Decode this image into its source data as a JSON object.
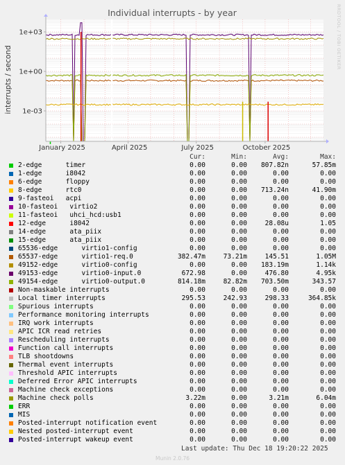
{
  "chart_data": {
    "type": "line",
    "title": "Individual interrupts - by year",
    "ylabel": "interrupts / second",
    "xlabel": "",
    "y_scale": "log",
    "y_ticks": [
      {
        "value": 1000,
        "label": "1e+03"
      },
      {
        "value": 1,
        "label": "1e+00"
      },
      {
        "value": 0.001,
        "label": "1e-03"
      }
    ],
    "ylim": [
      1e-06,
      5000
    ],
    "x_range": [
      "2024-12-12",
      "2025-12-18"
    ],
    "x_ticks": [
      {
        "date": "2025-01-01",
        "label": "January 2025"
      },
      {
        "date": "2025-04-01",
        "label": "April 2025"
      },
      {
        "date": "2025-07-01",
        "label": "July 2025"
      },
      {
        "date": "2025-10-01",
        "label": "October 2025"
      }
    ],
    "grid": true,
    "series": [
      {
        "name": "65537-edge virtio1-req.0",
        "color": "#b05000",
        "level": 0.2,
        "max": 1050000,
        "drops": [
          "2025-01-18",
          "2025-01-30",
          "2025-02-02",
          "2025-06-20",
          "2025-09-10"
        ],
        "bumps": []
      },
      {
        "name": "49153-edge virtio0-input.0",
        "color": "#5c0070",
        "level": 600,
        "max": 4950,
        "drops": [
          "2025-01-18",
          "2025-01-30",
          "2025-02-02",
          "2025-06-20",
          "2025-09-10"
        ],
        "bumps": [
          "2025-01-28"
        ]
      },
      {
        "name": "49154-edge virtio0-output.0",
        "color": "#8aa800",
        "level": 0.5,
        "max": 343.57,
        "drops": [
          "2025-01-18",
          "2025-01-30",
          "2025-02-02",
          "2025-06-20",
          "2025-09-10"
        ],
        "bumps": []
      },
      {
        "name": "Local timer interrupts",
        "color": "#a09000",
        "level": 300,
        "max": 364850,
        "drops": [],
        "bumps": []
      },
      {
        "name": "49152-edge virtio0-config",
        "color": "#ddaa00",
        "level": 0.003,
        "max": 1140,
        "drops": [],
        "bumps": []
      }
    ],
    "spikes": [
      {
        "date": "2025-01-28",
        "value": 1000,
        "color": "#dd0000"
      },
      {
        "date": "2025-09-01",
        "value": 0.005,
        "color": "#ccbb00"
      },
      {
        "date": "2025-10-05",
        "value": 0.005,
        "color": "#dd0000"
      },
      {
        "date": "2024-12-18",
        "value": 3e-06,
        "color": "#00cc00"
      }
    ]
  },
  "watermark": "RRDTOOL / TOBI OETIKER",
  "legend": {
    "headers": {
      "cur": "Cur:",
      "min": "Min:",
      "avg": "Avg:",
      "max": "Max:"
    },
    "rows": [
      {
        "name": "2-edge      timer",
        "color": "#00cc00",
        "cur": "0.00",
        "min": "0.00",
        "avg": "807.82n",
        "max": "57.85m"
      },
      {
        "name": "1-edge      i8042",
        "color": "#0066b3",
        "cur": "0.00",
        "min": "0.00",
        "avg": "0.00",
        "max": "0.00"
      },
      {
        "name": "6-edge      floppy",
        "color": "#ff8000",
        "cur": "0.00",
        "min": "0.00",
        "avg": "0.00",
        "max": "0.00"
      },
      {
        "name": "8-edge      rtc0",
        "color": "#ffcc00",
        "cur": "0.00",
        "min": "0.00",
        "avg": "713.24n",
        "max": "41.90m"
      },
      {
        "name": "9-fasteoi   acpi",
        "color": "#330099",
        "cur": "0.00",
        "min": "0.00",
        "avg": "0.00",
        "max": "0.00"
      },
      {
        "name": "10-fasteoi   virtio2",
        "color": "#990099",
        "cur": "0.00",
        "min": "0.00",
        "avg": "0.00",
        "max": "0.00"
      },
      {
        "name": "11-fasteoi   uhci_hcd:usb1",
        "color": "#ccff00",
        "cur": "0.00",
        "min": "0.00",
        "avg": "0.00",
        "max": "0.00"
      },
      {
        "name": "12-edge      i8042",
        "color": "#ff0000",
        "cur": "0.00",
        "min": "0.00",
        "avg": "28.08u",
        "max": "1.05"
      },
      {
        "name": "14-edge      ata_piix",
        "color": "#808080",
        "cur": "0.00",
        "min": "0.00",
        "avg": "0.00",
        "max": "0.00"
      },
      {
        "name": "15-edge      ata_piix",
        "color": "#008f00",
        "cur": "0.00",
        "min": "0.00",
        "avg": "0.00",
        "max": "0.00"
      },
      {
        "name": "65536-edge      virtio1-config",
        "color": "#00487d",
        "cur": "0.00",
        "min": "0.00",
        "avg": "0.00",
        "max": "0.00"
      },
      {
        "name": "65537-edge      virtio1-req.0",
        "color": "#b35a00",
        "cur": "382.47m",
        "min": "73.21m",
        "avg": "145.51",
        "max": "1.05M"
      },
      {
        "name": "49152-edge      virtio0-config",
        "color": "#b38f00",
        "cur": "0.00",
        "min": "0.00",
        "avg": "183.19m",
        "max": "1.14k"
      },
      {
        "name": "49153-edge      virtio0-input.0",
        "color": "#6b006b",
        "cur": "672.98",
        "min": "0.00",
        "avg": "476.80",
        "max": "4.95k"
      },
      {
        "name": "49154-edge      virtio0-output.0",
        "color": "#8fb300",
        "cur": "814.18m",
        "min": "82.82m",
        "avg": "703.50m",
        "max": "343.57"
      },
      {
        "name": "Non-maskable interrupts",
        "color": "#b30000",
        "cur": "0.00",
        "min": "0.00",
        "avg": "0.00",
        "max": "0.00"
      },
      {
        "name": "Local timer interrupts",
        "color": "#bebebe",
        "cur": "295.53",
        "min": "242.93",
        "avg": "298.33",
        "max": "364.85k"
      },
      {
        "name": "Spurious interrupts",
        "color": "#80ff80",
        "cur": "0.00",
        "min": "0.00",
        "avg": "0.00",
        "max": "0.00"
      },
      {
        "name": "Performance monitoring interrupts",
        "color": "#80c9ff",
        "cur": "0.00",
        "min": "0.00",
        "avg": "0.00",
        "max": "0.00"
      },
      {
        "name": "IRQ work interrupts",
        "color": "#ffc080",
        "cur": "0.00",
        "min": "0.00",
        "avg": "0.00",
        "max": "0.00"
      },
      {
        "name": "APIC ICR read retries",
        "color": "#ffe680",
        "cur": "0.00",
        "min": "0.00",
        "avg": "0.00",
        "max": "0.00"
      },
      {
        "name": "Rescheduling interrupts",
        "color": "#aa80ff",
        "cur": "0.00",
        "min": "0.00",
        "avg": "0.00",
        "max": "0.00"
      },
      {
        "name": "Function call interrupts",
        "color": "#ee00cc",
        "cur": "0.00",
        "min": "0.00",
        "avg": "0.00",
        "max": "0.00"
      },
      {
        "name": "TLB shootdowns",
        "color": "#ff8080",
        "cur": "0.00",
        "min": "0.00",
        "avg": "0.00",
        "max": "0.00"
      },
      {
        "name": "Thermal event interrupts",
        "color": "#666600",
        "cur": "0.00",
        "min": "0.00",
        "avg": "0.00",
        "max": "0.00"
      },
      {
        "name": "Threshold APIC interrupts",
        "color": "#ffbfff",
        "cur": "0.00",
        "min": "0.00",
        "avg": "0.00",
        "max": "0.00"
      },
      {
        "name": "Deferred Error APIC interrupts",
        "color": "#00ffcc",
        "cur": "0.00",
        "min": "0.00",
        "avg": "0.00",
        "max": "0.00"
      },
      {
        "name": "Machine check exceptions",
        "color": "#cc6699",
        "cur": "0.00",
        "min": "0.00",
        "avg": "0.00",
        "max": "0.00"
      },
      {
        "name": "Machine check polls",
        "color": "#999900",
        "cur": "3.22m",
        "min": "0.00",
        "avg": "3.21m",
        "max": "6.04m"
      },
      {
        "name": "ERR",
        "color": "#00cc00",
        "cur": "0.00",
        "min": "0.00",
        "avg": "0.00",
        "max": "0.00"
      },
      {
        "name": "MIS",
        "color": "#0066b3",
        "cur": "0.00",
        "min": "0.00",
        "avg": "0.00",
        "max": "0.00"
      },
      {
        "name": "Posted-interrupt notification event",
        "color": "#ff8000",
        "cur": "0.00",
        "min": "0.00",
        "avg": "0.00",
        "max": "0.00"
      },
      {
        "name": "Nested posted-interrupt event",
        "color": "#ffcc00",
        "cur": "0.00",
        "min": "0.00",
        "avg": "0.00",
        "max": "0.00"
      },
      {
        "name": "Posted-interrupt wakeup event",
        "color": "#330099",
        "cur": "0.00",
        "min": "0.00",
        "avg": "0.00",
        "max": "0.00"
      }
    ]
  },
  "footer": "Last update: Thu Dec 18 19:20:22 2025",
  "munin_version": "Munin 2.0.76"
}
